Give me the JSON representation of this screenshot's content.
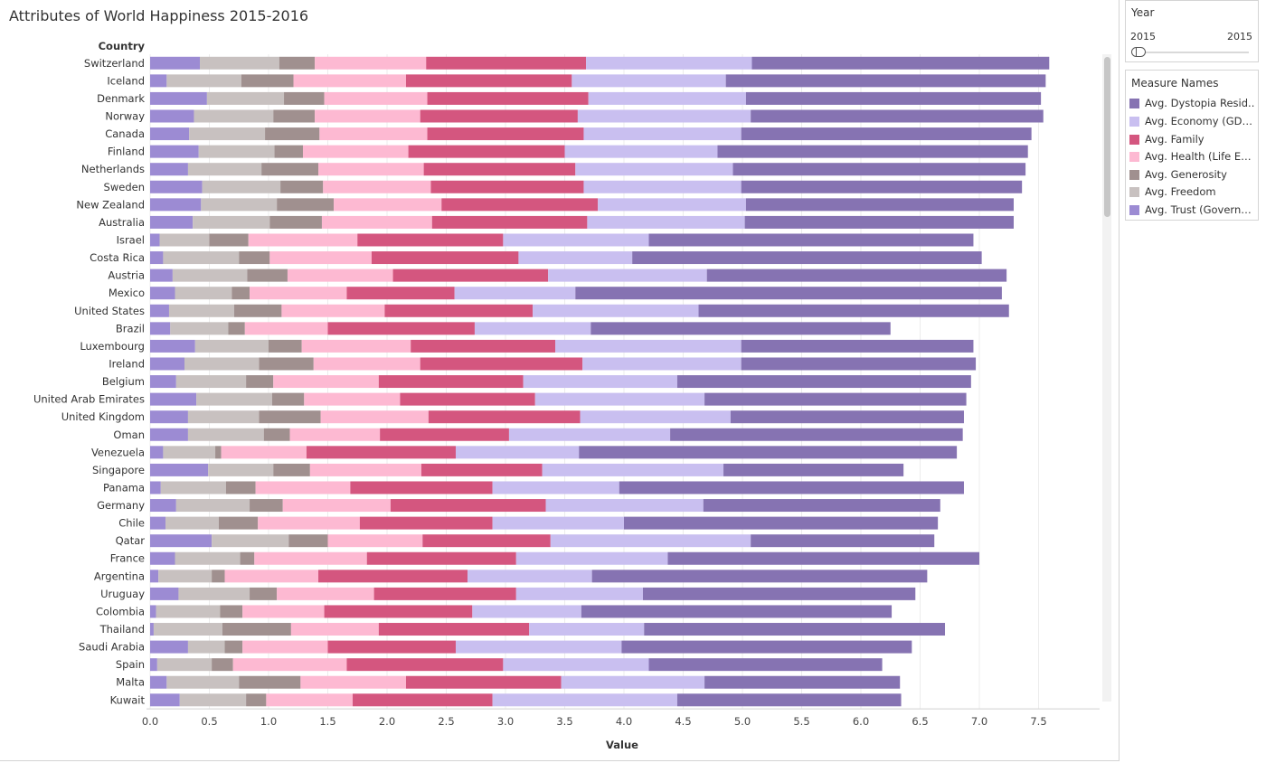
{
  "title": "Attributes of World Happiness 2015-2016",
  "filter": {
    "title": "Year",
    "min_label": "2015",
    "max_label": "2015"
  },
  "legend": {
    "title": "Measure Names",
    "items": [
      {
        "label": "Avg. Dystopia Resid..",
        "color": "#8673b2"
      },
      {
        "label": "Avg. Economy (GDP ..",
        "color": "#c9bff0"
      },
      {
        "label": "Avg. Family",
        "color": "#d4567f"
      },
      {
        "label": "Avg. Health (Life Exp..",
        "color": "#fdb9d2"
      },
      {
        "label": "Avg. Generosity",
        "color": "#a0908f"
      },
      {
        "label": "Avg. Freedom",
        "color": "#c8c1c0"
      },
      {
        "label": "Avg. Trust (Governm..",
        "color": "#9c8bd3"
      }
    ]
  },
  "chart_data": {
    "type": "bar",
    "orientation": "horizontal",
    "stacked": true,
    "title": "Attributes of World Happiness 2015-2016",
    "xlabel": "Value",
    "ylabel": "Country",
    "xlim": [
      0,
      7.9
    ],
    "xticks": [
      "0.0",
      "0.5",
      "1.0",
      "1.5",
      "2.0",
      "2.5",
      "3.0",
      "3.5",
      "4.0",
      "4.5",
      "5.0",
      "5.5",
      "6.0",
      "6.5",
      "7.0",
      "7.5"
    ],
    "grid": "vertical",
    "legend_position": "right",
    "categories": [
      "Switzerland",
      "Iceland",
      "Denmark",
      "Norway",
      "Canada",
      "Finland",
      "Netherlands",
      "Sweden",
      "New Zealand",
      "Australia",
      "Israel",
      "Costa Rica",
      "Austria",
      "Mexico",
      "United States",
      "Brazil",
      "Luxembourg",
      "Ireland",
      "Belgium",
      "United Arab Emirates",
      "United Kingdom",
      "Oman",
      "Venezuela",
      "Singapore",
      "Panama",
      "Germany",
      "Chile",
      "Qatar",
      "France",
      "Argentina",
      "Uruguay",
      "Colombia",
      "Thailand",
      "Saudi Arabia",
      "Spain",
      "Malta",
      "Kuwait"
    ],
    "series": [
      {
        "name": "Avg. Trust (Governm..",
        "color": "#9c8bd3",
        "values": [
          0.42,
          0.14,
          0.48,
          0.37,
          0.33,
          0.41,
          0.32,
          0.44,
          0.43,
          0.36,
          0.08,
          0.11,
          0.19,
          0.21,
          0.16,
          0.17,
          0.38,
          0.29,
          0.22,
          0.39,
          0.32,
          0.32,
          0.11,
          0.49,
          0.09,
          0.22,
          0.13,
          0.52,
          0.21,
          0.07,
          0.24,
          0.05,
          0.03,
          0.32,
          0.06,
          0.14,
          0.25
        ]
      },
      {
        "name": "Avg. Freedom",
        "color": "#c8c1c0",
        "values": [
          0.67,
          0.63,
          0.65,
          0.67,
          0.64,
          0.64,
          0.62,
          0.66,
          0.64,
          0.65,
          0.42,
          0.64,
          0.63,
          0.48,
          0.55,
          0.49,
          0.62,
          0.63,
          0.59,
          0.64,
          0.6,
          0.64,
          0.44,
          0.55,
          0.55,
          0.62,
          0.45,
          0.65,
          0.55,
          0.45,
          0.6,
          0.54,
          0.58,
          0.31,
          0.46,
          0.61,
          0.56
        ]
      },
      {
        "name": "Avg. Generosity",
        "color": "#a0908f",
        "values": [
          0.3,
          0.44,
          0.34,
          0.35,
          0.46,
          0.24,
          0.48,
          0.36,
          0.48,
          0.44,
          0.33,
          0.26,
          0.34,
          0.15,
          0.4,
          0.14,
          0.28,
          0.46,
          0.23,
          0.27,
          0.52,
          0.22,
          0.05,
          0.31,
          0.25,
          0.28,
          0.33,
          0.33,
          0.12,
          0.11,
          0.23,
          0.19,
          0.58,
          0.15,
          0.18,
          0.52,
          0.17
        ]
      },
      {
        "name": "Avg. Health (Life Exp..",
        "color": "#fdb9d2",
        "values": [
          0.94,
          0.95,
          0.87,
          0.89,
          0.91,
          0.89,
          0.89,
          0.91,
          0.91,
          0.93,
          0.92,
          0.86,
          0.89,
          0.82,
          0.87,
          0.7,
          0.92,
          0.9,
          0.89,
          0.81,
          0.91,
          0.76,
          0.72,
          0.94,
          0.8,
          0.91,
          0.86,
          0.8,
          0.95,
          0.79,
          0.82,
          0.69,
          0.74,
          0.72,
          0.96,
          0.89,
          0.73
        ]
      },
      {
        "name": "Avg. Family",
        "color": "#d4567f",
        "values": [
          1.35,
          1.4,
          1.36,
          1.33,
          1.32,
          1.32,
          1.28,
          1.29,
          1.32,
          1.31,
          1.23,
          1.24,
          1.31,
          0.91,
          1.25,
          1.24,
          1.22,
          1.37,
          1.22,
          1.14,
          1.28,
          1.09,
          1.26,
          1.02,
          1.2,
          1.31,
          1.12,
          1.08,
          1.26,
          1.26,
          1.2,
          1.25,
          1.27,
          1.08,
          1.32,
          1.31,
          1.18
        ]
      },
      {
        "name": "Avg. Economy (GDP ..",
        "color": "#c9bff0",
        "values": [
          1.4,
          1.3,
          1.33,
          1.46,
          1.33,
          1.29,
          1.33,
          1.33,
          1.25,
          1.33,
          1.23,
          0.96,
          1.34,
          1.02,
          1.4,
          0.98,
          1.57,
          1.34,
          1.3,
          1.43,
          1.27,
          1.36,
          1.04,
          1.53,
          1.07,
          1.33,
          1.11,
          1.69,
          1.28,
          1.05,
          1.07,
          0.92,
          0.97,
          1.4,
          1.23,
          1.21,
          1.56
        ]
      },
      {
        "name": "Avg. Dystopia Resid..",
        "color": "#8673b2",
        "values": [
          2.51,
          2.7,
          2.49,
          2.47,
          2.45,
          2.62,
          2.47,
          2.37,
          2.26,
          2.27,
          2.74,
          2.95,
          2.53,
          3.6,
          2.62,
          2.53,
          1.96,
          1.98,
          2.48,
          2.21,
          1.97,
          2.47,
          3.19,
          1.52,
          2.91,
          2.0,
          2.65,
          1.55,
          2.63,
          2.83,
          2.3,
          2.62,
          2.54,
          2.45,
          1.97,
          1.65,
          1.89
        ]
      }
    ]
  }
}
